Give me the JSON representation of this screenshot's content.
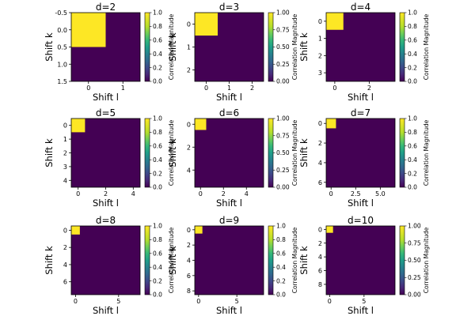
{
  "chart_data": {
    "type": "heatmap",
    "description_free": true,
    "colormap": "viridis",
    "colors": {
      "low": "#440154",
      "high": "#fde725",
      "frame": "#000000"
    },
    "colorbar_label": "Correlation Magnitude",
    "xlabel": "Shift l",
    "ylabel": "Shift k",
    "value_range": [
      0.0,
      1.0
    ],
    "panels": [
      {
        "title": "d=2",
        "d": 2,
        "peak": [
          0,
          0
        ],
        "peak_value": 1.0,
        "background_value": 0.0,
        "x_ticks": [
          0,
          1
        ],
        "y_ticks": [
          "-0.5",
          "0.0",
          "0.5",
          "1.0",
          "1.5"
        ],
        "y_tick_values": [
          -0.5,
          0,
          0.5,
          1,
          1.5
        ],
        "y_range": [
          -0.5,
          1.5
        ],
        "x_range": [
          -0.5,
          1.5
        ],
        "colorbar_ticks": [
          "0.0",
          "0.2",
          "0.4",
          "0.6",
          "0.8",
          "1.0"
        ]
      },
      {
        "title": "d=3",
        "d": 3,
        "peak": [
          0,
          0
        ],
        "peak_value": 1.0,
        "background_value": 0.0,
        "x_ticks": [
          0,
          1,
          2
        ],
        "y_ticks": [
          "0",
          "1",
          "2"
        ],
        "y_tick_values": [
          0,
          1,
          2
        ],
        "y_range": [
          -0.5,
          2.5
        ],
        "x_range": [
          -0.5,
          2.5
        ],
        "colorbar_ticks": [
          "0.00",
          "0.25",
          "0.50",
          "0.75",
          "1.00"
        ]
      },
      {
        "title": "d=4",
        "d": 4,
        "peak": [
          0,
          0
        ],
        "peak_value": 1.0,
        "background_value": 0.0,
        "x_ticks": [
          0,
          2
        ],
        "y_ticks": [
          "0",
          "1",
          "2",
          "3"
        ],
        "y_tick_values": [
          0,
          1,
          2,
          3
        ],
        "y_range": [
          -0.5,
          3.5
        ],
        "x_range": [
          -0.5,
          3.5
        ],
        "colorbar_ticks": [
          "0.0",
          "0.2",
          "0.4",
          "0.6",
          "0.8",
          "1.0"
        ]
      },
      {
        "title": "d=5",
        "d": 5,
        "peak": [
          0,
          0
        ],
        "peak_value": 1.0,
        "background_value": 0.0,
        "x_ticks": [
          0,
          2,
          4
        ],
        "y_ticks": [
          "0",
          "1",
          "2",
          "3",
          "4"
        ],
        "y_tick_values": [
          0,
          1,
          2,
          3,
          4
        ],
        "y_range": [
          -0.5,
          4.5
        ],
        "x_range": [
          -0.5,
          4.5
        ],
        "colorbar_ticks": [
          "0.0",
          "0.2",
          "0.4",
          "0.6",
          "0.8",
          "1.0"
        ]
      },
      {
        "title": "d=6",
        "d": 6,
        "peak": [
          0,
          0
        ],
        "peak_value": 1.0,
        "background_value": 0.0,
        "x_ticks": [
          0,
          2,
          4
        ],
        "y_ticks": [
          "0",
          "2",
          "4"
        ],
        "y_tick_values": [
          0,
          2,
          4
        ],
        "y_range": [
          -0.5,
          5.5
        ],
        "x_range": [
          -0.5,
          5.5
        ],
        "colorbar_ticks": [
          "0.00",
          "0.25",
          "0.50",
          "0.75",
          "1.00"
        ]
      },
      {
        "title": "d=7",
        "d": 7,
        "peak": [
          0,
          0
        ],
        "peak_value": 1.0,
        "background_value": 0.0,
        "x_ticks": [
          "0",
          "2.5",
          "5.0"
        ],
        "x_tick_values": [
          0,
          2.5,
          5
        ],
        "y_ticks": [
          "0",
          "2",
          "4",
          "6"
        ],
        "y_tick_values": [
          0,
          2,
          4,
          6
        ],
        "y_range": [
          -0.5,
          6.5
        ],
        "x_range": [
          -0.5,
          6.5
        ],
        "colorbar_ticks": [
          "0.0",
          "0.2",
          "0.4",
          "0.6",
          "0.8",
          "1.0"
        ]
      },
      {
        "title": "d=8",
        "d": 8,
        "peak": [
          0,
          0
        ],
        "peak_value": 1.0,
        "background_value": 0.0,
        "x_ticks": [
          0,
          5
        ],
        "y_ticks": [
          "0",
          "2",
          "4",
          "6"
        ],
        "y_tick_values": [
          0,
          2,
          4,
          6
        ],
        "y_range": [
          -0.5,
          7.5
        ],
        "x_range": [
          -0.5,
          7.5
        ],
        "colorbar_ticks": [
          "0.0",
          "0.2",
          "0.4",
          "0.6",
          "0.8",
          "1.0"
        ]
      },
      {
        "title": "d=9",
        "d": 9,
        "peak": [
          0,
          0
        ],
        "peak_value": 1.0,
        "background_value": 0.0,
        "x_ticks": [
          0,
          5
        ],
        "y_ticks": [
          "0",
          "2",
          "4",
          "6",
          "8"
        ],
        "y_tick_values": [
          0,
          2,
          4,
          6,
          8
        ],
        "y_range": [
          -0.5,
          8.5
        ],
        "x_range": [
          -0.5,
          8.5
        ],
        "colorbar_ticks": [
          "0.0",
          "0.2",
          "0.4",
          "0.6",
          "0.8",
          "1.0"
        ]
      },
      {
        "title": "d=10",
        "d": 10,
        "peak": [
          0,
          0
        ],
        "peak_value": 1.0,
        "background_value": 0.0,
        "x_ticks": [
          0,
          5
        ],
        "y_ticks": [
          "0",
          "2",
          "4",
          "6",
          "8"
        ],
        "y_tick_values": [
          0,
          2,
          4,
          6,
          8
        ],
        "y_range": [
          -0.5,
          9.5
        ],
        "x_range": [
          -0.5,
          9.5
        ],
        "colorbar_ticks": [
          "0.00",
          "0.25",
          "0.50",
          "0.75",
          "1.00"
        ]
      }
    ]
  }
}
